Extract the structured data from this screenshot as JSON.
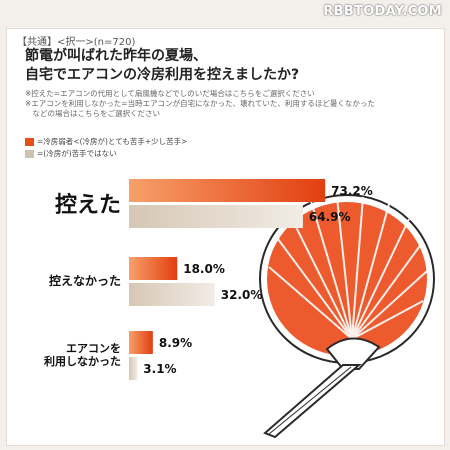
{
  "watermark": "RBBTODAY.COM",
  "header": {
    "tag": "【共通】<択一>(n=720)",
    "title_line1": "節電が叫ばれた昨年の夏場、",
    "title_line2": "自宅でエアコンの冷房利用を控えましたか?"
  },
  "notes": [
    "※控えた=エアコンの代用として扇風機などでしのいだ場合はこちらをご選択ください",
    "※エアコンを利用しなかった=当時エアコンが自宅になかった、壊れていた、利用するほど暑くなかった",
    "　などの場合はこちらをご選択ください"
  ],
  "colors": {
    "series_weak": "#e8501a",
    "series_not": "#d0c2b0",
    "fan_red": "#ec5a2e",
    "fan_stroke": "#2a2a2a"
  },
  "chart_data": {
    "type": "bar",
    "orientation": "horizontal",
    "unit": "%",
    "categories": [
      "控えた",
      "控えなかった",
      "エアコンを\n利用しなかった"
    ],
    "series": [
      {
        "name": "=冷房弱者<(冷房が)とても苦手+少し苦手>",
        "values": [
          73.2,
          18.0,
          8.9
        ]
      },
      {
        "name": "=(冷房が)苦手ではない",
        "values": [
          64.9,
          32.0,
          3.1
        ]
      }
    ],
    "data_labels": [
      [
        "73.2%",
        "18.0%",
        "8.9%"
      ],
      [
        "64.9%",
        "32.0%",
        "3.1%"
      ]
    ],
    "legend_position": "top-left"
  }
}
